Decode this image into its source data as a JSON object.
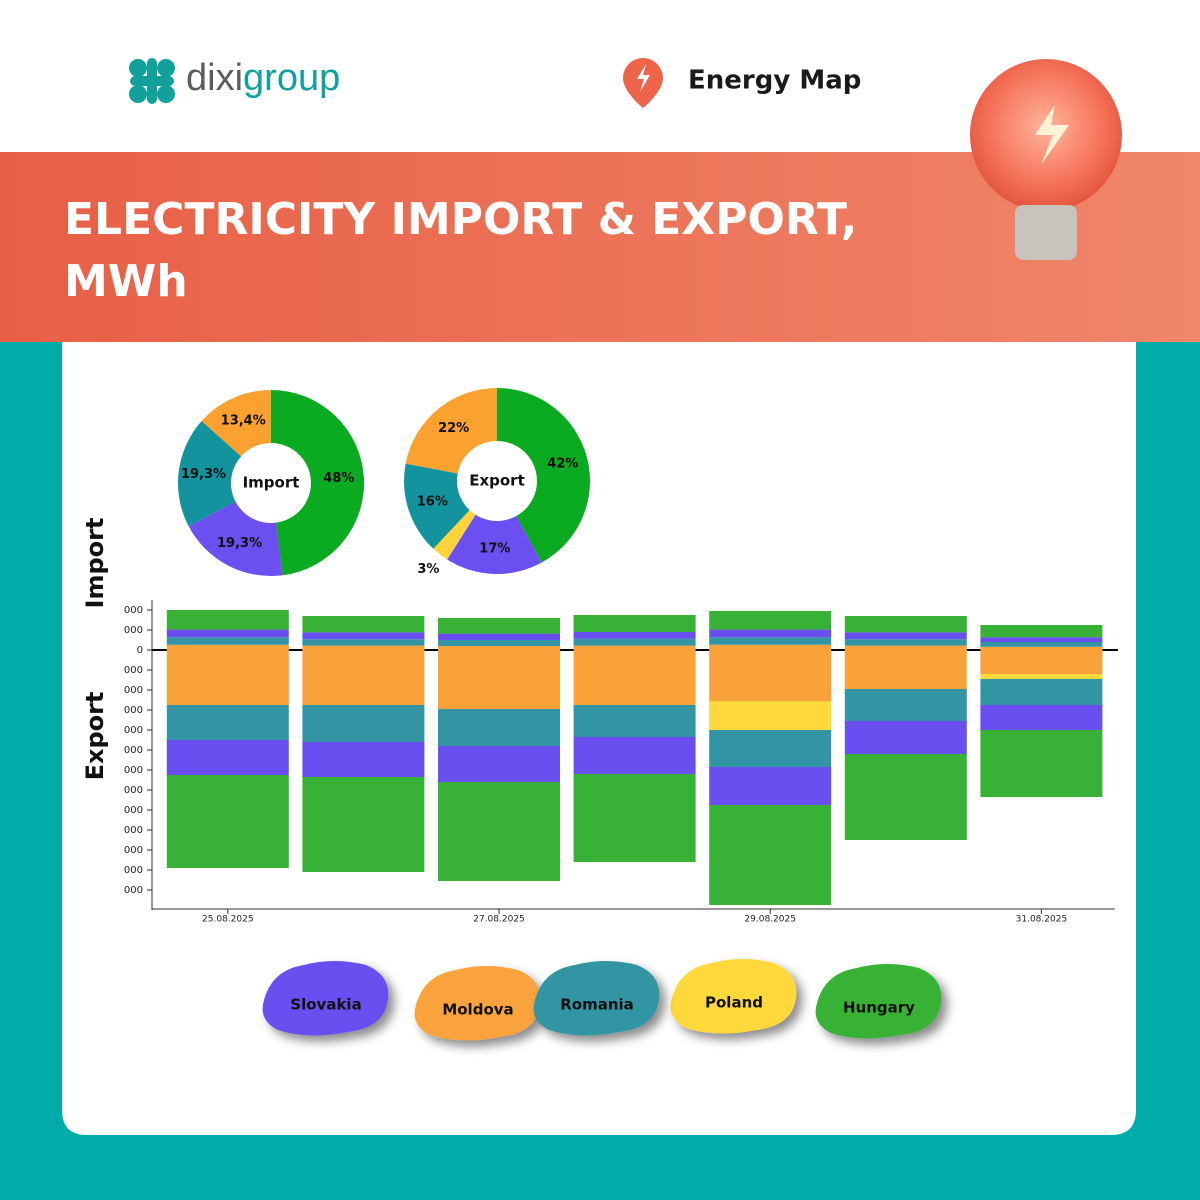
{
  "header": {
    "logo_a": "dixi",
    "logo_b": "group",
    "product": "Energy Map",
    "title_lines": [
      "ELECTRICITY IMPORT & EXPORT,",
      "MWh"
    ]
  },
  "chart_data": [
    {
      "type": "pie",
      "title": "Import",
      "values": [
        48,
        19.3,
        19.3,
        13.4
      ],
      "value_labels": [
        "48%",
        "19,3%",
        "19,3%",
        "13,4%"
      ],
      "colors": [
        "#0aab21",
        "#6b4ff0",
        "#13939e",
        "#faa12f"
      ]
    },
    {
      "type": "pie",
      "title": "Export",
      "values": [
        42,
        17,
        3,
        16,
        22
      ],
      "value_labels": [
        "42%",
        "17%",
        "3%",
        "16%",
        "22%"
      ],
      "colors": [
        "#0aab21",
        "#6b4ff0",
        "#ffd43b",
        "#13939e",
        "#faa12f"
      ]
    },
    {
      "type": "bar",
      "stacked": true,
      "import_label": "Import",
      "export_label": "Export",
      "categories": [
        "25.08.2025",
        null,
        "27.08.2025",
        null,
        "29.08.2025",
        null,
        "31.08.2025"
      ],
      "ylim": [
        -64000,
        12500
      ],
      "yticks": [
        {
          "value": 10000,
          "label": "000"
        },
        {
          "value": 5000,
          "label": "000"
        },
        0,
        {
          "value": -5000,
          "label": "000"
        },
        {
          "value": -10000,
          "label": "000"
        },
        {
          "value": -15000,
          "label": "000"
        },
        {
          "value": -20000,
          "label": "000"
        },
        {
          "value": -25000,
          "label": "000"
        },
        {
          "value": -30000,
          "label": "000"
        },
        {
          "value": -35000,
          "label": "000"
        },
        {
          "value": -40000,
          "label": "000"
        },
        {
          "value": -45000,
          "label": "000"
        },
        {
          "value": -50000,
          "label": "000"
        },
        {
          "value": -55000,
          "label": "000"
        },
        {
          "value": -60000,
          "label": "000"
        }
      ],
      "series": [
        {
          "name": "Moldova",
          "color": "#faa23a",
          "import_values": [
            1300,
            1100,
            1000,
            1100,
            1300,
            1100,
            800
          ],
          "export_values": [
            -13750,
            -13750,
            -14750,
            -13750,
            -12750,
            -9750,
            -6000
          ]
        },
        {
          "name": "Poland",
          "color": "#ffd83b",
          "import_values": [
            0,
            0,
            0,
            0,
            0,
            0,
            0
          ],
          "export_values": [
            0,
            0,
            0,
            0,
            -7250,
            0,
            -1250
          ]
        },
        {
          "name": "Romania",
          "color": "#3395a3",
          "import_values": [
            1900,
            1600,
            1500,
            1700,
            1900,
            1600,
            1200
          ],
          "export_values": [
            -8750,
            -9250,
            -9250,
            -8000,
            -9250,
            -8000,
            -6500
          ]
        },
        {
          "name": "Slovakia",
          "color": "#6a4ff0",
          "import_values": [
            1900,
            1700,
            1600,
            1700,
            1900,
            1700,
            1200
          ],
          "export_values": [
            -8750,
            -8750,
            -9000,
            -9250,
            -9500,
            -8250,
            -6250
          ]
        },
        {
          "name": "Hungary",
          "color": "#38b236",
          "import_values": [
            4900,
            4100,
            3900,
            4250,
            4650,
            4100,
            3050
          ],
          "export_values": [
            -23250,
            -23750,
            -24750,
            -22000,
            -25000,
            -21500,
            -16750
          ]
        }
      ]
    }
  ]
}
